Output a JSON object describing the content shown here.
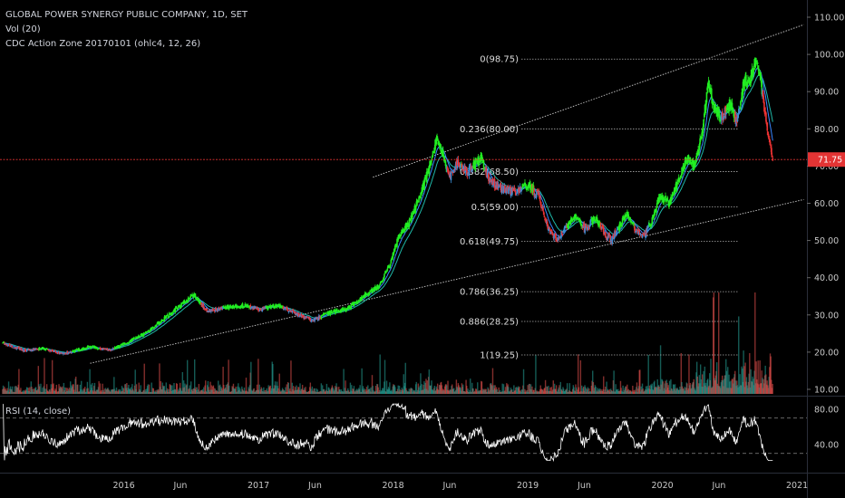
{
  "colors": {
    "background": "#000000",
    "text": "#d1d4dc",
    "axis_text": "#c8c8c8",
    "up_candle": "#22ee22",
    "down_candle": "#ee3333",
    "ma_fast": "#3a86ff",
    "ma_slow": "#1fb8a8",
    "channel": "#cccccc",
    "fib": "#aaaaaa",
    "last_price": "#e33434",
    "volume_up": "#26a69a",
    "volume_down": "#ef5350",
    "rsi_line": "#ffffff"
  },
  "legend": {
    "title": "GLOBAL POWER SYNERGY PUBLIC COMPANY, 1D, SET",
    "volume": "Vol (20)",
    "indicator": "CDC Action Zone 20170101 (ohlc4, 12, 26)"
  },
  "chart_data": [
    {
      "type": "candlestick",
      "price_axis": {
        "min": 10,
        "max": 110,
        "ticks": [
          "110.00",
          "100.00",
          "90.00",
          "80.00",
          "70.00",
          "60.00",
          "50.00",
          "40.00",
          "30.00",
          "20.00",
          "10.00"
        ]
      },
      "time_axis": {
        "ticks": [
          "2016",
          "Jun",
          "2017",
          "Jun",
          "2018",
          "Jun",
          "2019",
          "Jun",
          "2020",
          "Jun",
          "2021"
        ]
      },
      "last_price": {
        "value": 71.75,
        "label": "71.75"
      },
      "fibonacci": [
        {
          "ratio": 0,
          "price": 98.75,
          "label": "0(98.75)"
        },
        {
          "ratio": 0.236,
          "price": 80.0,
          "label": "0.236(80.00)"
        },
        {
          "ratio": 0.382,
          "price": 68.5,
          "label": "0.382(68.50)"
        },
        {
          "ratio": 0.5,
          "price": 59.0,
          "label": "0.5(59.00)"
        },
        {
          "ratio": 0.618,
          "price": 49.75,
          "label": "0.618(49.75)"
        },
        {
          "ratio": 0.786,
          "price": 36.25,
          "label": "0.786(36.25)"
        },
        {
          "ratio": 0.886,
          "price": 28.25,
          "label": "0.886(28.25)"
        },
        {
          "ratio": 1,
          "price": 19.25,
          "label": "1(19.25)"
        }
      ],
      "price_path": [
        {
          "t": 2015.1,
          "p": 22.5
        },
        {
          "t": 2015.25,
          "p": 20.5
        },
        {
          "t": 2015.4,
          "p": 21.0
        },
        {
          "t": 2015.55,
          "p": 19.5
        },
        {
          "t": 2015.75,
          "p": 21.5
        },
        {
          "t": 2015.9,
          "p": 20.5
        },
        {
          "t": 2016.05,
          "p": 23.0
        },
        {
          "t": 2016.2,
          "p": 26.0
        },
        {
          "t": 2016.3,
          "p": 29.0
        },
        {
          "t": 2016.42,
          "p": 32.5
        },
        {
          "t": 2016.52,
          "p": 35.5
        },
        {
          "t": 2016.62,
          "p": 31.0
        },
        {
          "t": 2016.75,
          "p": 32.0
        },
        {
          "t": 2016.9,
          "p": 32.5
        },
        {
          "t": 2017.0,
          "p": 31.5
        },
        {
          "t": 2017.15,
          "p": 32.5
        },
        {
          "t": 2017.3,
          "p": 30.0
        },
        {
          "t": 2017.4,
          "p": 28.5
        },
        {
          "t": 2017.52,
          "p": 30.5
        },
        {
          "t": 2017.65,
          "p": 31.5
        },
        {
          "t": 2017.78,
          "p": 35.0
        },
        {
          "t": 2017.9,
          "p": 38.0
        },
        {
          "t": 2017.98,
          "p": 44.0
        },
        {
          "t": 2018.05,
          "p": 52.0
        },
        {
          "t": 2018.12,
          "p": 55.0
        },
        {
          "t": 2018.2,
          "p": 62.0
        },
        {
          "t": 2018.27,
          "p": 70.0
        },
        {
          "t": 2018.32,
          "p": 77.0
        },
        {
          "t": 2018.37,
          "p": 73.0
        },
        {
          "t": 2018.42,
          "p": 67.0
        },
        {
          "t": 2018.48,
          "p": 71.0
        },
        {
          "t": 2018.55,
          "p": 68.5
        },
        {
          "t": 2018.65,
          "p": 72.0
        },
        {
          "t": 2018.72,
          "p": 66.0
        },
        {
          "t": 2018.8,
          "p": 64.0
        },
        {
          "t": 2018.9,
          "p": 63.0
        },
        {
          "t": 2019.0,
          "p": 65.0
        },
        {
          "t": 2019.08,
          "p": 62.0
        },
        {
          "t": 2019.15,
          "p": 53.0
        },
        {
          "t": 2019.22,
          "p": 50.0
        },
        {
          "t": 2019.3,
          "p": 54.0
        },
        {
          "t": 2019.36,
          "p": 57.0
        },
        {
          "t": 2019.42,
          "p": 53.0
        },
        {
          "t": 2019.5,
          "p": 56.0
        },
        {
          "t": 2019.57,
          "p": 52.0
        },
        {
          "t": 2019.62,
          "p": 50.0
        },
        {
          "t": 2019.68,
          "p": 54.0
        },
        {
          "t": 2019.74,
          "p": 57.0
        },
        {
          "t": 2019.8,
          "p": 53.0
        },
        {
          "t": 2019.86,
          "p": 51.0
        },
        {
          "t": 2019.93,
          "p": 56.0
        },
        {
          "t": 2019.98,
          "p": 62.0
        },
        {
          "t": 2020.05,
          "p": 60.0
        },
        {
          "t": 2020.12,
          "p": 66.0
        },
        {
          "t": 2020.18,
          "p": 72.0
        },
        {
          "t": 2020.24,
          "p": 70.0
        },
        {
          "t": 2020.3,
          "p": 80.0
        },
        {
          "t": 2020.34,
          "p": 93.0
        },
        {
          "t": 2020.38,
          "p": 86.0
        },
        {
          "t": 2020.44,
          "p": 83.0
        },
        {
          "t": 2020.5,
          "p": 87.0
        },
        {
          "t": 2020.55,
          "p": 82.0
        },
        {
          "t": 2020.6,
          "p": 92.0
        },
        {
          "t": 2020.65,
          "p": 94.0
        },
        {
          "t": 2020.7,
          "p": 98.5
        },
        {
          "t": 2020.74,
          "p": 90.0
        },
        {
          "t": 2020.78,
          "p": 80.0
        },
        {
          "t": 2020.82,
          "p": 72.0
        }
      ],
      "channel": {
        "upper": [
          {
            "t": 2017.85,
            "p": 67.0
          },
          {
            "t": 2021.05,
            "p": 108.0
          }
        ],
        "lower": [
          {
            "t": 2015.75,
            "p": 17.0
          },
          {
            "t": 2021.05,
            "p": 61.0
          }
        ]
      },
      "volume_axis": {
        "ticks": [
          "10.00"
        ]
      }
    },
    {
      "type": "line",
      "name": "RSI (14, close)",
      "y_axis": {
        "min": 20,
        "max": 95,
        "ticks": [
          "80.00",
          "40.00"
        ]
      },
      "bands": [
        70,
        30
      ],
      "values_summary": {
        "min": 22,
        "max": 86,
        "last": 31
      }
    }
  ],
  "rsi_legend": "RSI (14, close)"
}
